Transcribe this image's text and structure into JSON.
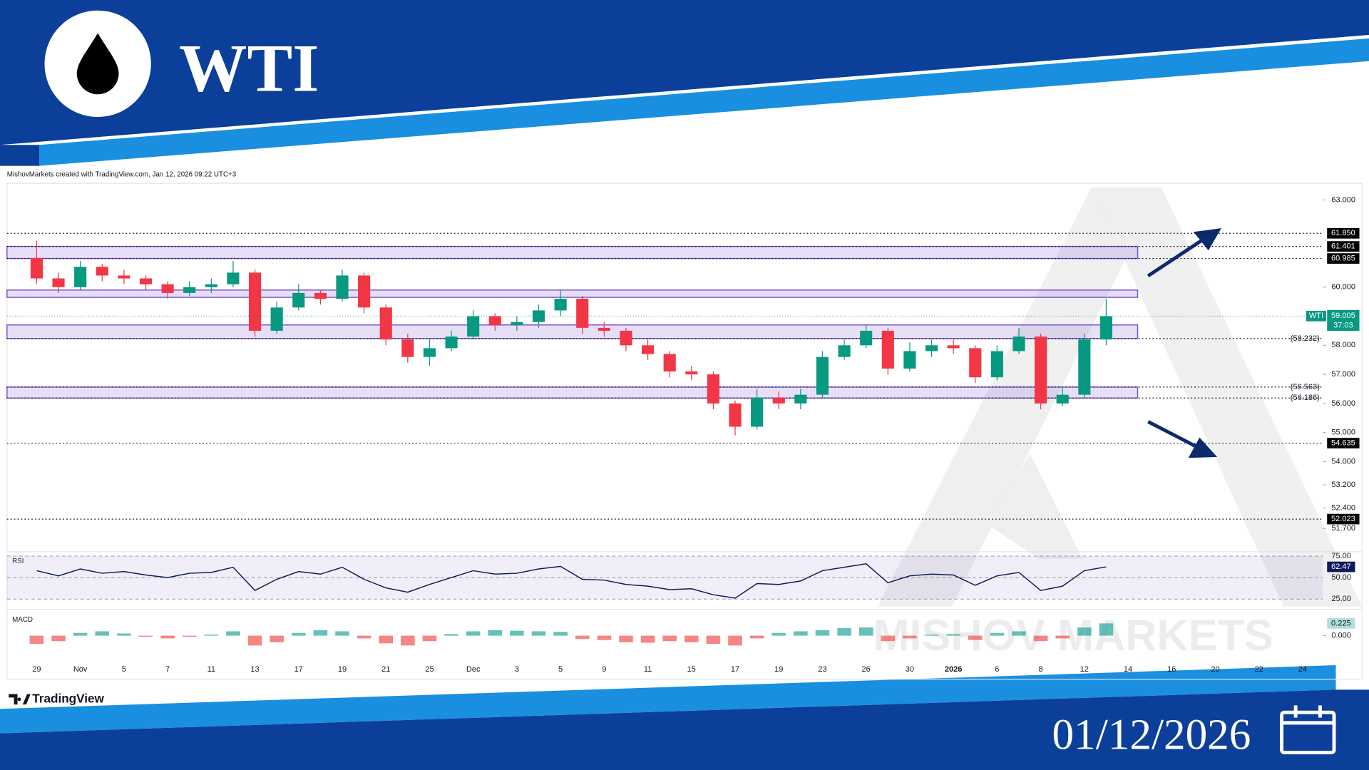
{
  "header": {
    "title": "WTI",
    "date": "01/12/2026"
  },
  "attribution": "MishovMarkets created with TradingView.com, Jan 12, 2026 09:22 UTC+3",
  "brand": "TradingView",
  "watermark": "MISHOV MARKETS",
  "chart_data": {
    "type": "candlestick",
    "symbol": "WTI",
    "price": 59.005,
    "countdown": "37:03",
    "up_color": "#089981",
    "down_color": "#f23645",
    "zone_color": "#7b4fd6",
    "categories": [
      "29",
      null,
      "Nov",
      null,
      "5",
      null,
      "7",
      null,
      "11",
      null,
      "13",
      null,
      "17",
      null,
      "19",
      null,
      "21",
      null,
      "25",
      null,
      "Dec",
      null,
      "3",
      null,
      "5",
      null,
      "9",
      null,
      "11",
      null,
      "15",
      null,
      "17",
      null,
      "19",
      null,
      "23",
      null,
      "26",
      null,
      "30",
      null,
      "2026",
      null,
      "6",
      null,
      "8",
      null,
      "12",
      null,
      "14",
      null,
      "16",
      null,
      "20",
      null,
      "22",
      null,
      "24",
      null
    ],
    "open": [
      61.0,
      60.3,
      60.0,
      60.7,
      60.4,
      60.3,
      60.1,
      59.8,
      60.0,
      60.1,
      60.5,
      58.5,
      59.3,
      59.8,
      59.6,
      60.4,
      59.3,
      58.2,
      57.6,
      57.9,
      58.3,
      59.0,
      58.7,
      58.8,
      59.2,
      59.6,
      58.6,
      58.5,
      58.0,
      57.7,
      57.1,
      57.0,
      56.0,
      55.2,
      56.2,
      56.0,
      56.3,
      57.6,
      58.0,
      58.5,
      57.2,
      57.8,
      58.0,
      57.9,
      56.9,
      57.8,
      58.3,
      56.0,
      56.3,
      58.2,
      null,
      null,
      null,
      null,
      null,
      null,
      null,
      null,
      null,
      null
    ],
    "high": [
      61.6,
      60.5,
      60.9,
      60.8,
      60.6,
      60.4,
      60.2,
      60.2,
      60.3,
      60.9,
      60.6,
      59.5,
      60.1,
      59.9,
      60.6,
      60.5,
      59.4,
      58.4,
      58.2,
      58.5,
      59.2,
      59.1,
      59.0,
      59.4,
      59.9,
      59.7,
      58.8,
      58.6,
      58.2,
      57.8,
      57.3,
      57.1,
      56.1,
      56.5,
      56.4,
      56.5,
      57.8,
      58.2,
      58.7,
      58.6,
      58.1,
      58.2,
      58.2,
      58.0,
      58.0,
      58.6,
      58.4,
      56.6,
      58.4,
      59.6,
      null,
      null,
      null,
      null,
      null,
      null,
      null,
      null,
      null,
      null
    ],
    "low": [
      60.1,
      59.8,
      59.9,
      60.2,
      60.1,
      59.9,
      59.6,
      59.7,
      59.8,
      60.0,
      58.3,
      58.4,
      59.2,
      59.4,
      59.5,
      59.1,
      58.0,
      57.4,
      57.3,
      57.8,
      58.2,
      58.5,
      58.5,
      58.6,
      59.0,
      58.4,
      58.3,
      57.8,
      57.5,
      56.9,
      56.8,
      55.8,
      54.9,
      55.1,
      55.8,
      55.8,
      56.2,
      57.5,
      57.9,
      57.0,
      57.1,
      57.6,
      57.7,
      56.7,
      56.8,
      57.7,
      55.8,
      55.9,
      56.2,
      58.0,
      null,
      null,
      null,
      null,
      null,
      null,
      null,
      null,
      null,
      null
    ],
    "close": [
      60.3,
      60.0,
      60.7,
      60.4,
      60.3,
      60.1,
      59.8,
      60.0,
      60.1,
      60.5,
      58.5,
      59.3,
      59.8,
      59.6,
      60.4,
      59.3,
      58.2,
      57.6,
      57.9,
      58.3,
      59.0,
      58.7,
      58.8,
      59.2,
      59.6,
      58.6,
      58.5,
      58.0,
      57.7,
      57.1,
      57.0,
      56.0,
      55.2,
      56.2,
      56.0,
      56.3,
      57.6,
      58.0,
      58.5,
      57.2,
      57.8,
      58.0,
      57.9,
      56.9,
      57.8,
      58.3,
      56.0,
      56.3,
      58.2,
      59.0,
      null,
      null,
      null,
      null,
      null,
      null,
      null,
      null,
      null,
      null
    ],
    "ylim": [
      50.9,
      63.42
    ],
    "yticks": [
      {
        "value": 63,
        "label": "63.000"
      },
      {
        "value": 60,
        "label": "60.000"
      },
      {
        "value": 58,
        "label": "58.000"
      },
      {
        "value": 57,
        "label": "57.000"
      },
      {
        "value": 56,
        "label": "56.000"
      },
      {
        "value": 55,
        "label": "55.000"
      },
      {
        "value": 54,
        "label": "54.000"
      },
      {
        "value": 53.2,
        "label": "53.200"
      },
      {
        "value": 52.4,
        "label": "52.400"
      },
      {
        "value": 51.7,
        "label": "51.700"
      }
    ],
    "levels": [
      {
        "value": 61.85,
        "label": "61.850",
        "boxed": true
      },
      {
        "value": 61.401,
        "label": "61.401",
        "boxed": true
      },
      {
        "value": 60.985,
        "label": "60.985",
        "boxed": true
      },
      {
        "value": 58.232,
        "label": "(58.232)",
        "boxed": false
      },
      {
        "value": 56.563,
        "label": "(56.563)",
        "boxed": false
      },
      {
        "value": 56.186,
        "label": "(56.186)",
        "boxed": false
      },
      {
        "value": 54.635,
        "label": "54.635",
        "boxed": true
      },
      {
        "value": 52.023,
        "label": "52.023",
        "boxed": true
      }
    ],
    "zones": [
      [
        60.985,
        61.401
      ],
      [
        59.65,
        59.9
      ],
      [
        58.232,
        58.7
      ],
      [
        56.186,
        56.563
      ]
    ],
    "rsi": {
      "title": "RSI",
      "color": "#0d1b5e",
      "values": [
        58,
        52,
        60,
        55,
        57,
        53,
        50,
        55,
        56,
        62,
        35,
        48,
        57,
        54,
        62,
        48,
        38,
        33,
        42,
        50,
        58,
        54,
        55,
        60,
        63,
        48,
        47,
        42,
        40,
        36,
        37,
        30,
        26,
        43,
        42,
        46,
        58,
        62,
        66,
        44,
        52,
        54,
        53,
        41,
        52,
        56,
        35,
        40,
        58,
        62.47,
        null,
        null,
        null,
        null,
        null,
        null,
        null,
        null,
        null,
        null
      ],
      "ylim": [
        14,
        77
      ],
      "yticks": [
        {
          "value": 75,
          "label": "75.00"
        },
        {
          "value": 50,
          "label": "50.00"
        },
        {
          "value": 25,
          "label": "25.00"
        }
      ]
    },
    "macd": {
      "title": "MACD",
      "pos_color": "#26a69a",
      "neg_color": "#ef5350",
      "values": [
        -0.15,
        -0.1,
        0.05,
        0.08,
        0.04,
        -0.02,
        -0.05,
        -0.02,
        0.02,
        0.08,
        -0.18,
        -0.12,
        0.05,
        0.1,
        0.08,
        -0.05,
        -0.14,
        -0.18,
        -0.1,
        0.03,
        0.08,
        0.1,
        0.09,
        0.08,
        0.07,
        -0.06,
        -0.08,
        -0.12,
        -0.13,
        -0.1,
        -0.12,
        -0.15,
        -0.18,
        -0.05,
        0.05,
        0.08,
        0.1,
        0.14,
        0.15,
        -0.1,
        -0.05,
        0.02,
        0.03,
        -0.08,
        0.05,
        0.08,
        -0.1,
        -0.05,
        0.15,
        0.225,
        null,
        null,
        null,
        null,
        null,
        null,
        null,
        null,
        null,
        null
      ],
      "ylim": [
        -0.75,
        0.45
      ],
      "yticks": [
        {
          "value": 0,
          "label": "0.000"
        }
      ]
    }
  }
}
